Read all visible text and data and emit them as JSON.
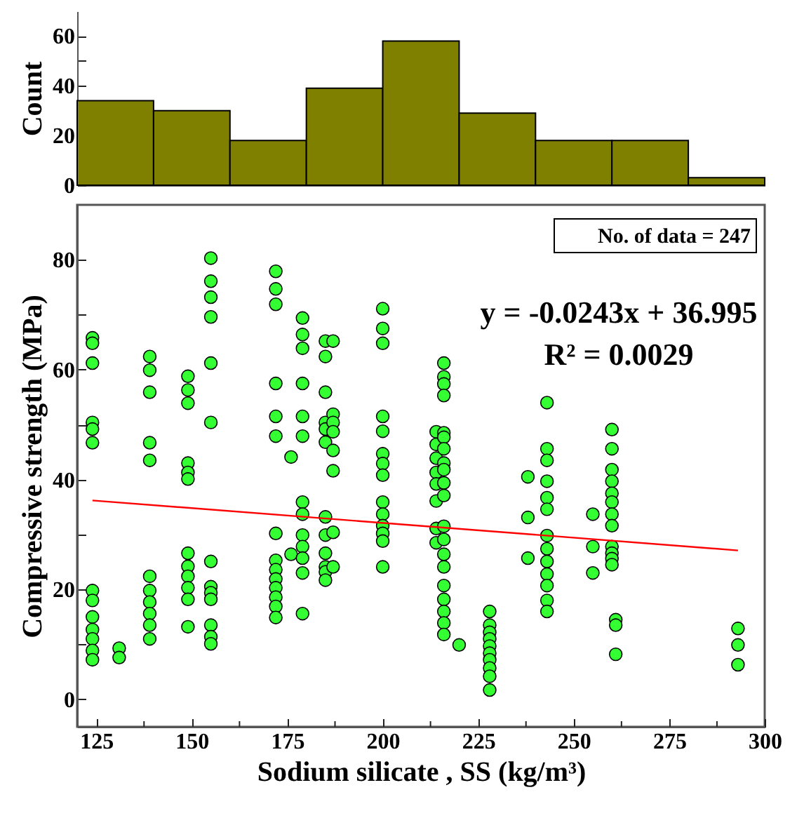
{
  "chart_data": [
    {
      "type": "histogram",
      "ylabel": "Count",
      "bins": [
        120,
        140,
        160,
        180,
        200,
        220,
        240,
        260,
        280,
        300
      ],
      "values": [
        34,
        30,
        18,
        39,
        58,
        29,
        18,
        18,
        3
      ],
      "color": "#808000",
      "xlim": [
        120,
        300
      ],
      "ylim": [
        0,
        70
      ],
      "yticks": [
        0,
        {
          "value": 10,
          "label": null
        },
        20,
        {
          "value": 30,
          "label": null
        },
        40,
        {
          "value": 50,
          "label": null
        },
        60
      ],
      "tick_labels": "y"
    },
    {
      "type": "scatter",
      "xlabel": "Sodium silicate , SS (kg/m³)",
      "ylabel": "Compressive strength (MPa)",
      "annotations": [
        "No. of data = 247",
        "y = -0.0243x + 36.995",
        "R² = 0.0029"
      ],
      "xlim": [
        120,
        300
      ],
      "ylim": [
        -5,
        90
      ],
      "xticks": [
        125,
        {
          "value": 137.5,
          "label": null
        },
        150,
        {
          "value": 162.5,
          "label": null
        },
        175,
        {
          "value": 187.5,
          "label": null
        },
        200,
        {
          "value": 212.5,
          "label": null
        },
        225,
        {
          "value": 237.5,
          "label": null
        },
        250,
        {
          "value": 262.5,
          "label": null
        },
        275,
        {
          "value": 287.5,
          "label": null
        },
        300
      ],
      "yticks": [
        0,
        {
          "value": 10,
          "label": null
        },
        20,
        {
          "value": 30,
          "label": null
        },
        40,
        {
          "value": 50,
          "label": null
        },
        60,
        {
          "value": 70,
          "label": null
        },
        80
      ],
      "series": [
        {
          "type": "scatter",
          "marker": "circle",
          "color": "#33ff33",
          "x": [
            124,
            124,
            124,
            124,
            124,
            124,
            124,
            124,
            124,
            124,
            124,
            124,
            124,
            131,
            131,
            139,
            139,
            139,
            139,
            139,
            139,
            139,
            139,
            139,
            139,
            139,
            149,
            149,
            149,
            149,
            149,
            149,
            149,
            149,
            149,
            149,
            149,
            149,
            155,
            155,
            155,
            155,
            155,
            155,
            155,
            155,
            155,
            155,
            155,
            155,
            155,
            172,
            172,
            172,
            172,
            172,
            172,
            172,
            172,
            172,
            172,
            172,
            172,
            172,
            172,
            176,
            176,
            179,
            179,
            179,
            179,
            179,
            179,
            179,
            179,
            179,
            179,
            179,
            179,
            179,
            185,
            185,
            185,
            185,
            185,
            185,
            185,
            185,
            185,
            185,
            185,
            185,
            187,
            187,
            187,
            187,
            187,
            187,
            187,
            187,
            200,
            200,
            200,
            200,
            200,
            200,
            200,
            200,
            200,
            200,
            200,
            200,
            200,
            200,
            214,
            214,
            214,
            214,
            214,
            214,
            214,
            214,
            216,
            216,
            216,
            216,
            216,
            216,
            216,
            216,
            216,
            216,
            216,
            216,
            216,
            216,
            216,
            216,
            216,
            216,
            216,
            216,
            220,
            228,
            228,
            228,
            228,
            228,
            228,
            228,
            228,
            228,
            228,
            238,
            238,
            238,
            243,
            243,
            243,
            243,
            243,
            243,
            243,
            243,
            243,
            243,
            243,
            243,
            243,
            255,
            255,
            255,
            260,
            260,
            260,
            260,
            260,
            260,
            260,
            260,
            260,
            260,
            260,
            260,
            261,
            261,
            261,
            293,
            293,
            293
          ],
          "values": [
            65.8,
            64.8,
            61.2,
            50.4,
            49.2,
            46.7,
            19.8,
            18,
            15,
            12.7,
            11,
            8.9,
            7.2,
            9.3,
            7.6,
            62.4,
            59.9,
            55.9,
            46.7,
            43.5,
            22.4,
            19.8,
            17.7,
            15.6,
            13.5,
            11,
            58.8,
            56.3,
            53.9,
            43,
            41.3,
            40.1,
            26.6,
            24.2,
            22.4,
            20.3,
            18.2,
            13.2,
            80.3,
            76.1,
            73.2,
            69.6,
            61.2,
            50.4,
            25.1,
            20.5,
            19.4,
            18.2,
            13.5,
            11.4,
            10.1,
            77.9,
            74.7,
            71.9,
            57.5,
            51.5,
            47.9,
            30.2,
            25.3,
            23.6,
            21.9,
            20.3,
            18.6,
            16.9,
            14.9,
            44.1,
            26.4,
            69.4,
            66.4,
            63.9,
            57.5,
            51.5,
            47.9,
            35.9,
            33.7,
            29.9,
            27.8,
            25.7,
            23,
            15.6,
            65.2,
            62.4,
            55.9,
            50.4,
            49.2,
            46.8,
            33.2,
            29.9,
            26.6,
            24.1,
            23.2,
            21.7,
            65.2,
            51.9,
            50.4,
            48.7,
            45.3,
            41.6,
            30.4,
            24.1,
            71.1,
            67.5,
            64.8,
            51.5,
            48.8,
            44.7,
            42.9,
            40.8,
            35.9,
            33.7,
            31.6,
            30.2,
            28.8,
            24.1,
            48.7,
            46.4,
            43.9,
            41.3,
            39.2,
            36.1,
            31.1,
            28.5,
            61.2,
            58.7,
            57.4,
            55.3,
            48.5,
            47.7,
            45.6,
            43,
            41.8,
            39.4,
            37.1,
            31.5,
            29.1,
            26.4,
            24.1,
            20.7,
            18.2,
            16,
            13.9,
            11.8,
            9.9,
            16,
            13.5,
            12.2,
            11,
            9.7,
            8.4,
            7.2,
            5.7,
            4.2,
            1.7,
            40.5,
            33.1,
            25.7,
            54,
            45.6,
            43.5,
            39.7,
            36.7,
            34.6,
            29.8,
            27.4,
            25.1,
            22.8,
            20.7,
            18,
            16,
            33.7,
            27.8,
            23,
            49.1,
            45.6,
            41.8,
            39.7,
            37.5,
            35.9,
            33.7,
            31.6,
            27.8,
            26.6,
            25.6,
            24.5,
            14.5,
            13.5,
            8.2,
            12.9,
            9.9,
            6.3
          ]
        },
        {
          "type": "line",
          "color": "#ff0000",
          "x": [
            124,
            293
          ],
          "values": [
            36.2,
            27.1
          ]
        }
      ]
    }
  ]
}
